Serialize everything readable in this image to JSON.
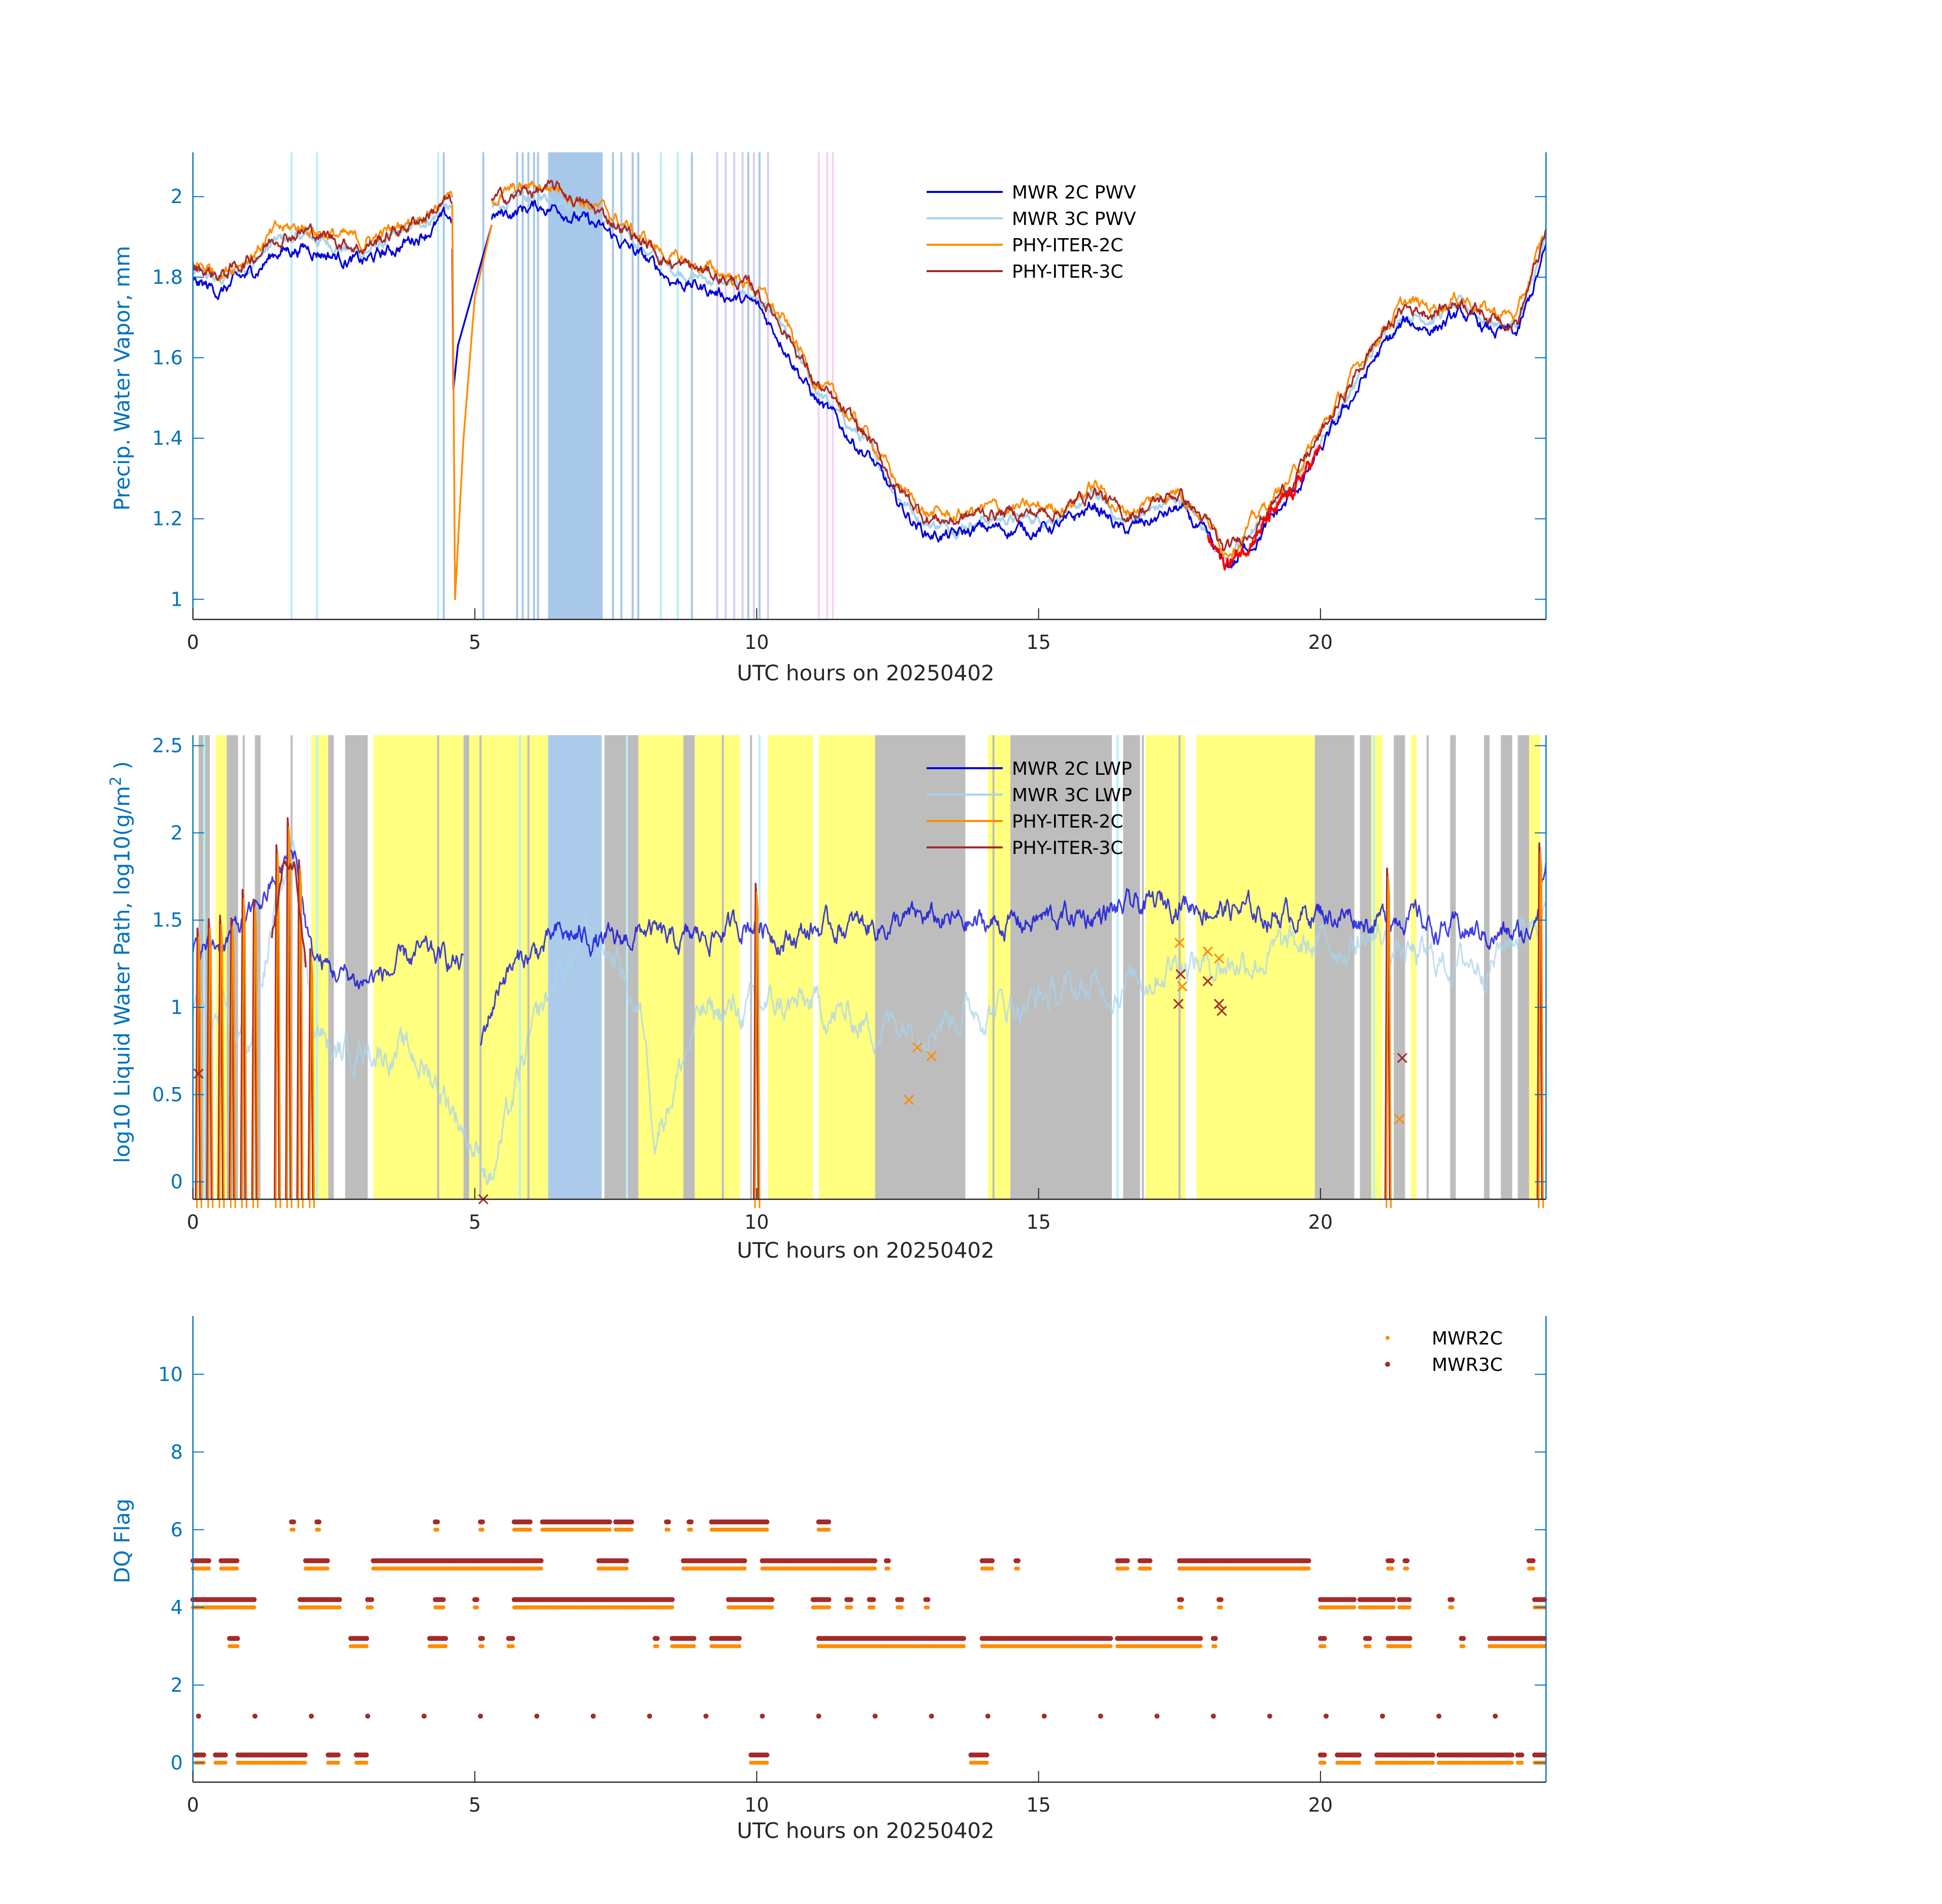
{
  "colors": {
    "axis_y": "#0072bd",
    "axis_x": "#262626",
    "mwr2c": "#0000dd",
    "mwr3c": "#a9d3ec",
    "phy2c": "#ff8c00",
    "phy3c": "#a52a2a",
    "red_hi": "#ff0000",
    "band_blue": "#a8c8ea",
    "band_cyan": "#b8f0f8",
    "band_lavender": "#d8cdf5",
    "band_pink": "#f0d5f0",
    "band_gray": "#bdbdbd",
    "band_yellow": "#ffff80",
    "band_ltblue": "#c9dcf5",
    "dq2c": "#ff8c00",
    "dq3c": "#a52a2a"
  },
  "xlabel": "UTC hours on 20250402",
  "chart_data": [
    {
      "type": "line",
      "name": "pwv",
      "ylabel": "Precip. Water Vapor, mm",
      "xlim": [
        0,
        24
      ],
      "ylim": [
        0.95,
        2.11
      ],
      "xticks": [
        "0",
        "5",
        "10",
        "15",
        "20"
      ],
      "xtick_values": [
        0,
        5,
        10,
        15,
        20
      ],
      "yticks": [
        "1",
        "1.2",
        "1.4",
        "1.6",
        "1.8",
        "2"
      ],
      "ytick_values": [
        1,
        1.2,
        1.4,
        1.6,
        1.8,
        2
      ],
      "legend": [
        "MWR 2C PWV",
        "MWR 3C PWV",
        "PHY-ITER-2C",
        "PHY-ITER-3C"
      ],
      "legend_position": "top-center",
      "base_curve": {
        "x": [
          0,
          0.5,
          1,
          1.5,
          2,
          2.5,
          3,
          3.5,
          4,
          4.5,
          5,
          5.5,
          6,
          6.5,
          7,
          7.5,
          8,
          8.5,
          9,
          9.5,
          10,
          10.5,
          11,
          11.5,
          12,
          12.5,
          13,
          13.5,
          14,
          14.5,
          15,
          15.5,
          16,
          16.5,
          17,
          17.5,
          18,
          18.3,
          18.5,
          19,
          19.5,
          20,
          20.5,
          21,
          21.5,
          22,
          22.5,
          23,
          23.5,
          24
        ],
        "y": [
          1.8,
          1.78,
          1.82,
          1.88,
          1.89,
          1.87,
          1.85,
          1.88,
          1.92,
          1.96,
          1.95,
          1.97,
          1.99,
          1.99,
          1.95,
          1.91,
          1.86,
          1.81,
          1.79,
          1.77,
          1.74,
          1.65,
          1.52,
          1.44,
          1.37,
          1.25,
          1.18,
          1.17,
          1.19,
          1.19,
          1.19,
          1.2,
          1.25,
          1.18,
          1.21,
          1.24,
          1.16,
          1.09,
          1.11,
          1.19,
          1.27,
          1.38,
          1.5,
          1.62,
          1.7,
          1.69,
          1.72,
          1.68,
          1.67,
          1.88
        ]
      },
      "dip_curves": {
        "mwr2c": {
          "x": [
            4.6,
            4.62,
            4.7,
            4.8,
            5.0,
            5.3
          ],
          "y": [
            1.87,
            1.52,
            1.63,
            1.68,
            1.78,
            1.93
          ]
        },
        "phy2c": {
          "x": [
            4.6,
            4.65,
            4.8,
            5.0,
            5.3
          ],
          "y": [
            1.98,
            1.0,
            1.4,
            1.75,
            1.93
          ]
        }
      },
      "red_segment_x": [
        18,
        20
      ]
    },
    {
      "type": "line",
      "name": "lwp",
      "ylabel": "log10 Liquid Water Path, log10(g/m",
      "ylabel_sup": "2",
      "ylabel_end": " )",
      "xlim": [
        0,
        24
      ],
      "ylim": [
        -0.1,
        2.56
      ],
      "xticks": [
        "0",
        "5",
        "10",
        "15",
        "20"
      ],
      "xtick_values": [
        0,
        5,
        10,
        15,
        20
      ],
      "yticks": [
        "0",
        "0.5",
        "1",
        "1.5",
        "2",
        "2.5"
      ],
      "ytick_values": [
        0,
        0.5,
        1,
        1.5,
        2,
        2.5
      ],
      "legend": [
        "MWR 2C LWP",
        "MWR 3C LWP",
        "PHY-ITER-2C",
        "PHY-ITER-3C"
      ],
      "legend_position": "top-center",
      "mwr2c_curve": {
        "x": [
          0,
          0.3,
          0.6,
          1,
          1.4,
          1.8,
          2.1,
          2.5,
          3,
          3.5,
          4,
          4.8,
          5.1,
          5.5,
          6,
          6.5,
          7,
          7.5,
          8,
          8.5,
          9,
          9.5,
          10,
          10.5,
          11,
          12,
          13,
          14,
          15,
          16,
          17,
          17.5,
          18,
          19,
          20,
          21,
          21.5,
          22,
          23,
          23.7,
          24
        ],
        "y": [
          1.3,
          1.35,
          1.4,
          1.5,
          1.7,
          1.9,
          1.3,
          1.2,
          1.15,
          1.2,
          1.3,
          1.25,
          0.8,
          1.2,
          1.3,
          1.4,
          1.4,
          1.35,
          1.45,
          1.35,
          1.4,
          1.45,
          1.5,
          1.4,
          1.45,
          1.47,
          1.5,
          1.47,
          1.5,
          1.53,
          1.58,
          1.62,
          1.58,
          1.53,
          1.55,
          1.5,
          1.55,
          1.45,
          1.42,
          1.4,
          1.85
        ]
      },
      "mwr3c_curve": {
        "x": [
          0,
          1,
          1.5,
          1.8,
          2.1,
          2.5,
          3,
          3.5,
          4,
          4.5,
          5,
          5.3,
          6,
          6.5,
          7,
          7.5,
          8,
          8.2,
          9,
          10,
          11,
          12,
          13,
          14,
          15,
          16,
          17,
          17.5,
          18,
          19,
          20,
          21,
          21.5,
          22,
          23,
          24
        ],
        "y": [
          1.0,
          0.8,
          1.6,
          1.9,
          1.0,
          0.7,
          0.8,
          0.75,
          0.7,
          0.5,
          0.2,
          0.05,
          0.8,
          1.2,
          1.4,
          1.3,
          0.9,
          0.3,
          0.95,
          1.0,
          1.0,
          0.9,
          0.95,
          1.0,
          1.05,
          1.1,
          1.2,
          1.3,
          1.25,
          1.3,
          1.35,
          1.4,
          1.3,
          1.25,
          1.28,
          1.6
        ]
      },
      "phy_spikes_x": [
        0.1,
        0.3,
        0.5,
        0.7,
        0.9,
        1.1,
        1.5,
        1.7,
        1.9,
        2.1,
        10.0,
        21.2,
        23.9
      ],
      "markers_2c": {
        "x": [
          12.7,
          12.85,
          13.1,
          17.5,
          17.55,
          18.0,
          18.2,
          21.4
        ],
        "y": [
          0.47,
          0.77,
          0.72,
          1.37,
          1.12,
          1.32,
          1.28,
          0.36
        ]
      },
      "markers_3c": {
        "x": [
          0.1,
          5.15,
          17.48,
          17.52,
          18.0,
          18.2,
          18.25,
          21.45
        ],
        "y": [
          0.62,
          -0.1,
          1.02,
          1.19,
          1.15,
          1.02,
          0.98,
          0.71
        ]
      }
    },
    {
      "type": "scatter",
      "name": "dq",
      "ylabel": "DQ Flag",
      "xlim": [
        0,
        24
      ],
      "ylim": [
        -0.5,
        11.5
      ],
      "xticks": [
        "0",
        "5",
        "10",
        "15",
        "20"
      ],
      "xtick_values": [
        0,
        5,
        10,
        15,
        20
      ],
      "yticks": [
        "0",
        "2",
        "4",
        "6",
        "8",
        "10"
      ],
      "ytick_values": [
        0,
        2,
        4,
        6,
        8,
        10
      ],
      "legend": [
        "MWR2C",
        "MWR3C"
      ],
      "legend_position": "top-right",
      "rows": [
        {
          "y": 6,
          "segments": [
            [
              1.75,
              1.8
            ],
            [
              2.2,
              2.25
            ],
            [
              4.3,
              4.35
            ],
            [
              5.1,
              5.15
            ],
            [
              5.7,
              6.0
            ],
            [
              6.2,
              7.4
            ],
            [
              7.5,
              7.8
            ],
            [
              8.4,
              8.45
            ],
            [
              8.8,
              8.85
            ],
            [
              9.2,
              10.2
            ],
            [
              11.1,
              11.3
            ]
          ]
        },
        {
          "y": 5,
          "segments": [
            [
              0,
              0.3
            ],
            [
              0.5,
              0.8
            ],
            [
              2.0,
              2.4
            ],
            [
              3.2,
              6.2
            ],
            [
              7.2,
              7.7
            ],
            [
              8.7,
              9.8
            ],
            [
              10.1,
              12.1
            ],
            [
              12.3,
              12.35
            ],
            [
              14.0,
              14.2
            ],
            [
              14.6,
              14.65
            ],
            [
              16.4,
              16.6
            ],
            [
              16.8,
              17.0
            ],
            [
              17.5,
              17.9
            ],
            [
              17.9,
              19.8
            ],
            [
              21.2,
              21.3
            ],
            [
              21.5,
              21.55
            ],
            [
              23.7,
              23.8
            ]
          ]
        },
        {
          "y": 4,
          "segments": [
            [
              0,
              1.1
            ],
            [
              1.9,
              2.6
            ],
            [
              3.1,
              3.2
            ],
            [
              4.3,
              4.45
            ],
            [
              5.0,
              5.05
            ],
            [
              5.7,
              8.5
            ],
            [
              9.5,
              10.3
            ],
            [
              11.0,
              11.3
            ],
            [
              11.6,
              11.7
            ],
            [
              12.0,
              12.1
            ],
            [
              12.5,
              12.6
            ],
            [
              13.0,
              13.05
            ],
            [
              17.5,
              17.55
            ],
            [
              18.2,
              18.25
            ],
            [
              20.0,
              20.6
            ],
            [
              20.7,
              21.3
            ],
            [
              21.4,
              21.6
            ],
            [
              22.3,
              22.35
            ],
            [
              23.8,
              24
            ]
          ]
        },
        {
          "y": 3,
          "segments": [
            [
              0.65,
              0.8
            ],
            [
              2.8,
              3.1
            ],
            [
              4.2,
              4.5
            ],
            [
              5.1,
              5.15
            ],
            [
              5.6,
              5.7
            ],
            [
              8.2,
              8.25
            ],
            [
              8.5,
              8.9
            ],
            [
              9.2,
              9.7
            ],
            [
              11.1,
              12.2
            ],
            [
              12.2,
              13.7
            ],
            [
              14.0,
              16.3
            ],
            [
              16.4,
              17.9
            ],
            [
              18.1,
              18.15
            ],
            [
              20.0,
              20.1
            ],
            [
              20.8,
              20.9
            ],
            [
              21.2,
              21.6
            ],
            [
              22.5,
              22.55
            ],
            [
              23.0,
              23.8
            ],
            [
              23.8,
              24
            ]
          ]
        },
        {
          "y": 0,
          "segments": [
            [
              0.05,
              0.2
            ],
            [
              0.4,
              0.6
            ],
            [
              0.8,
              2.0
            ],
            [
              2.4,
              2.6
            ],
            [
              2.9,
              3.1
            ],
            [
              9.9,
              10.2
            ],
            [
              13.8,
              14.1
            ],
            [
              20.0,
              20.1
            ],
            [
              20.3,
              20.7
            ],
            [
              21.0,
              21.5
            ],
            [
              21.5,
              22.0
            ],
            [
              22.1,
              23.4
            ],
            [
              23.5,
              23.6
            ],
            [
              23.8,
              24
            ]
          ]
        }
      ],
      "single_row_3c": {
        "y": 1.2,
        "step": 1.0
      }
    }
  ],
  "dq_legend_labels": {
    "a": "MWR2C",
    "b": "MWR3C"
  }
}
